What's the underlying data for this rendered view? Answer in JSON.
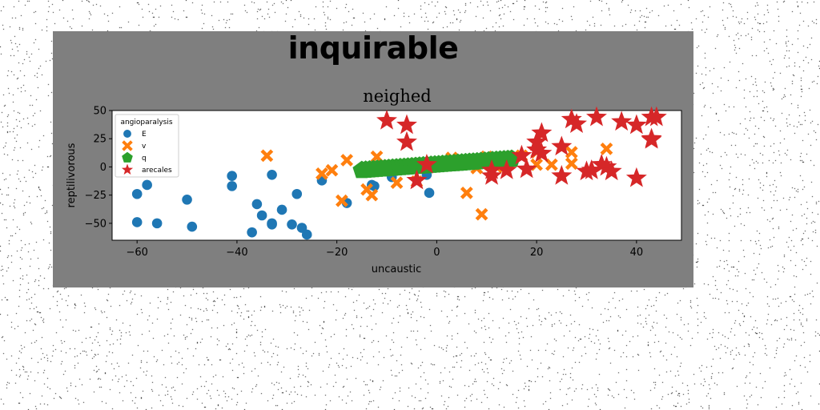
{
  "figure": {
    "suptitle": "inquirable"
  },
  "chart_data": {
    "type": "scatter",
    "title": "neighed",
    "xlabel": "uncaustic",
    "ylabel": "reptilivorous",
    "xlim": [
      -65,
      49
    ],
    "ylim": [
      -65,
      50
    ],
    "xticks": [
      -60,
      -40,
      -20,
      0,
      20,
      40
    ],
    "yticks": [
      50,
      25,
      0,
      -25,
      -50
    ],
    "grid": false,
    "legend": {
      "title": "angioparalysis",
      "position": "upper-left"
    },
    "series": [
      {
        "name": "E",
        "marker": "circle",
        "color": "#1f77b4",
        "points": [
          [
            -60,
            -24
          ],
          [
            -60,
            -49
          ],
          [
            -58,
            -16
          ],
          [
            -56,
            -50
          ],
          [
            -50,
            -29
          ],
          [
            -49,
            -53
          ],
          [
            -41,
            -8
          ],
          [
            -41,
            -17
          ],
          [
            -37,
            -58
          ],
          [
            -36,
            -33
          ],
          [
            -35,
            -43
          ],
          [
            -33,
            -7
          ],
          [
            -33,
            -50
          ],
          [
            -33,
            -51
          ],
          [
            -31,
            -38
          ],
          [
            -29,
            -51
          ],
          [
            -28,
            -24
          ],
          [
            -27,
            -54
          ],
          [
            -26,
            -60
          ],
          [
            -23,
            -12
          ],
          [
            -18,
            -32
          ],
          [
            -13,
            -16
          ],
          [
            -12.5,
            -17
          ],
          [
            -9,
            -9
          ],
          [
            -2,
            -7
          ],
          [
            -1.5,
            -23
          ]
        ]
      },
      {
        "name": "v",
        "marker": "x",
        "color": "#ff7f0e",
        "points": [
          [
            -34,
            10
          ],
          [
            -23,
            -6
          ],
          [
            -21,
            -3
          ],
          [
            -19,
            -30
          ],
          [
            -18,
            6
          ],
          [
            -14,
            -20
          ],
          [
            -13,
            -25
          ],
          [
            -12,
            9
          ],
          [
            -8,
            -14
          ],
          [
            -4,
            -13
          ],
          [
            3,
            8
          ],
          [
            6,
            -23
          ],
          [
            8,
            -1
          ],
          [
            9,
            -42
          ],
          [
            10,
            9
          ],
          [
            11,
            4
          ],
          [
            12,
            0
          ],
          [
            17,
            10
          ],
          [
            20,
            13
          ],
          [
            20,
            2
          ],
          [
            23,
            2
          ],
          [
            27,
            13
          ],
          [
            27,
            3
          ],
          [
            34,
            16
          ]
        ]
      },
      {
        "name": "q",
        "marker": "pentagon",
        "color": "#2ca02c",
        "line": {
          "x_start": -15,
          "x_end": 15,
          "y_start": -3,
          "y_end": 7,
          "count": 40
        }
      },
      {
        "name": "arecales",
        "marker": "star",
        "color": "#d62728",
        "points": [
          [
            -10,
            41
          ],
          [
            -6,
            37
          ],
          [
            -6,
            22
          ],
          [
            -4,
            -12
          ],
          [
            -2,
            2
          ],
          [
            11,
            -3
          ],
          [
            11,
            -8
          ],
          [
            14,
            -3
          ],
          [
            17,
            10
          ],
          [
            18,
            -2
          ],
          [
            20,
            22
          ],
          [
            20,
            15
          ],
          [
            21,
            30
          ],
          [
            21,
            12
          ],
          [
            25,
            18
          ],
          [
            25,
            -8
          ],
          [
            27,
            42
          ],
          [
            28,
            38
          ],
          [
            30,
            -4
          ],
          [
            31,
            -3
          ],
          [
            32,
            44
          ],
          [
            33,
            2
          ],
          [
            34,
            0
          ],
          [
            35,
            -4
          ],
          [
            37,
            40
          ],
          [
            40,
            37
          ],
          [
            40,
            -10
          ],
          [
            43,
            44
          ],
          [
            43,
            25
          ],
          [
            44,
            44
          ],
          [
            43,
            24
          ]
        ]
      }
    ]
  }
}
